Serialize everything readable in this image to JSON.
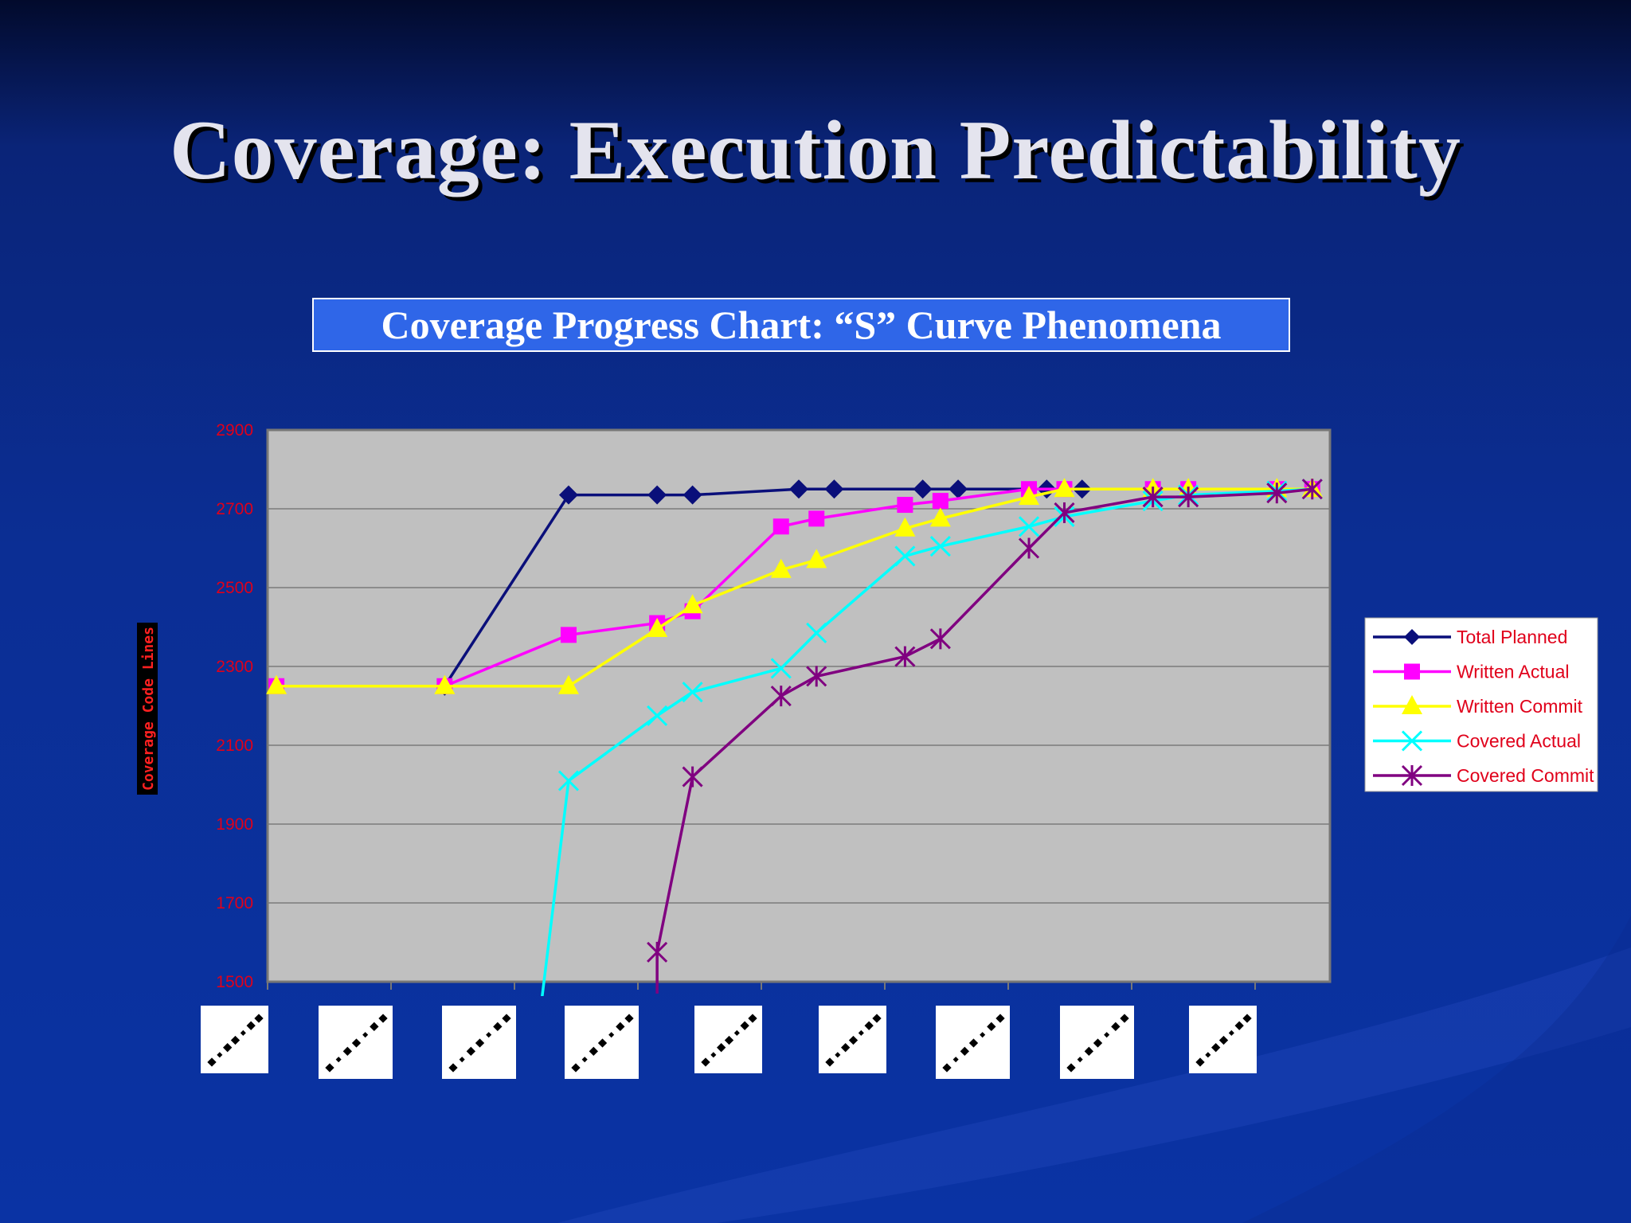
{
  "slide": {
    "title": "Coverage: Execution Predictability",
    "subtitle": "Coverage Progress Chart: “S” Curve Phenomena"
  },
  "chart_data": {
    "type": "line",
    "title": "",
    "ylabel": "Coverage Code Lines",
    "xlabel": "",
    "ylim": [
      1500,
      2900
    ],
    "yticks": [
      "2900",
      "2700",
      "2500",
      "2300",
      "2100",
      "1900",
      "1700",
      "1500"
    ],
    "xlim": [
      0,
      60
    ],
    "x_tick_labels_legible": false,
    "x_tick_label_count": 9,
    "grid": true,
    "legend_position": "right",
    "plot_background": "#c0c0c0",
    "series": [
      {
        "name": "Total Planned",
        "color": "#0a0f7a",
        "marker": "diamond",
        "x": [
          10,
          17,
          22,
          24,
          30,
          32,
          37,
          39,
          44,
          46
        ],
        "y": [
          2250,
          2735,
          2735,
          2735,
          2750,
          2750,
          2750,
          2750,
          2750,
          2750
        ]
      },
      {
        "name": "Written Actual",
        "color": "#ff00ff",
        "marker": "square",
        "x": [
          0.5,
          10,
          17,
          22,
          24,
          29,
          31,
          36,
          38,
          43,
          45,
          50,
          52,
          57,
          59
        ],
        "y": [
          2250,
          2250,
          2380,
          2410,
          2440,
          2655,
          2675,
          2710,
          2720,
          2750,
          2750,
          2750,
          2750,
          2750,
          2750
        ]
      },
      {
        "name": "Written Commit",
        "color": "#ffff00",
        "marker": "triangle",
        "x": [
          0.5,
          10,
          17,
          22,
          24,
          29,
          31,
          36,
          38,
          43,
          45,
          50,
          52,
          57,
          59
        ],
        "y": [
          2250,
          2250,
          2250,
          2395,
          2455,
          2545,
          2570,
          2650,
          2675,
          2730,
          2750,
          2750,
          2750,
          2750,
          2750
        ]
      },
      {
        "name": "Covered Actual",
        "color": "#00ffff",
        "marker": "x",
        "x": [
          15.5,
          17,
          22,
          24,
          29,
          31,
          36,
          38,
          43,
          45,
          50,
          52,
          57,
          59
        ],
        "y": [
          1460,
          2010,
          2175,
          2235,
          2295,
          2385,
          2580,
          2605,
          2655,
          2680,
          2720,
          2735,
          2745,
          2750
        ]
      },
      {
        "name": "Covered Commit",
        "color": "#800080",
        "marker": "star",
        "x": [
          22,
          22,
          24,
          29,
          31,
          36,
          38,
          43,
          45,
          50,
          52,
          57,
          59
        ],
        "y": [
          1470,
          1575,
          2020,
          2225,
          2275,
          2325,
          2370,
          2600,
          2690,
          2730,
          2730,
          2740,
          2750
        ]
      }
    ]
  }
}
